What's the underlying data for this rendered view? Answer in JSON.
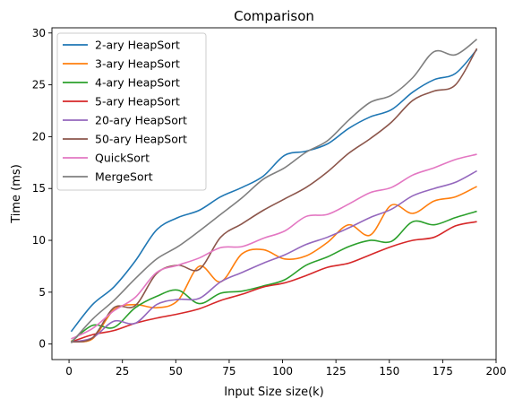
{
  "chart_data": {
    "type": "line",
    "title": "Comparison",
    "xlabel": "Input Size size(k)",
    "ylabel": "Time (ms)",
    "xlim": [
      -8,
      200
    ],
    "ylim": [
      -1.5,
      30.5
    ],
    "xticks": [
      0,
      25,
      50,
      75,
      100,
      125,
      150,
      175,
      200
    ],
    "yticks": [
      0,
      5,
      10,
      15,
      20,
      25,
      30
    ],
    "grid": false,
    "legend_position": "upper-left",
    "x": [
      1,
      11,
      21,
      31,
      41,
      51,
      61,
      71,
      81,
      91,
      101,
      111,
      121,
      131,
      141,
      151,
      161,
      171,
      181,
      191
    ],
    "series": [
      {
        "name": "2-ary HeapSort",
        "color": "#1f77b4",
        "values": [
          1.2,
          3.8,
          5.5,
          8.0,
          11.0,
          12.2,
          12.9,
          14.2,
          15.1,
          16.2,
          18.2,
          18.6,
          19.3,
          20.8,
          21.9,
          22.6,
          24.3,
          25.5,
          26.1,
          28.4
        ]
      },
      {
        "name": "3-ary HeapSort",
        "color": "#ff7f0e",
        "values": [
          0.3,
          0.5,
          3.3,
          3.8,
          3.5,
          4.2,
          7.5,
          6.0,
          8.7,
          9.1,
          8.2,
          8.5,
          9.8,
          11.5,
          10.5,
          13.4,
          12.6,
          13.8,
          14.2,
          15.2
        ]
      },
      {
        "name": "4-ary HeapSort",
        "color": "#2ca02c",
        "values": [
          0.2,
          1.8,
          1.6,
          3.5,
          4.6,
          5.2,
          3.9,
          4.9,
          5.1,
          5.6,
          6.2,
          7.6,
          8.4,
          9.4,
          10.0,
          9.9,
          11.8,
          11.5,
          12.2,
          12.8
        ]
      },
      {
        "name": "5-ary HeapSort",
        "color": "#d62728",
        "values": [
          0.2,
          0.9,
          1.3,
          2.0,
          2.5,
          2.9,
          3.4,
          4.2,
          4.8,
          5.5,
          5.9,
          6.6,
          7.4,
          7.8,
          8.6,
          9.4,
          10.0,
          10.3,
          11.4,
          11.8
        ]
      },
      {
        "name": "20-ary HeapSort",
        "color": "#9467bd",
        "values": [
          0.2,
          0.6,
          2.2,
          2.0,
          3.8,
          4.3,
          4.4,
          6.0,
          6.9,
          7.8,
          8.6,
          9.6,
          10.3,
          11.2,
          12.2,
          13.0,
          14.3,
          15.0,
          15.6,
          16.7
        ]
      },
      {
        "name": "50-ary HeapSort",
        "color": "#8c564b",
        "values": [
          0.2,
          0.6,
          3.5,
          3.7,
          6.8,
          7.6,
          7.2,
          10.3,
          11.6,
          12.9,
          14.0,
          15.1,
          16.6,
          18.4,
          19.8,
          21.4,
          23.5,
          24.4,
          25.0,
          28.5
        ]
      },
      {
        "name": "QuickSort",
        "color": "#e377c2",
        "values": [
          0.5,
          1.5,
          3.2,
          4.5,
          6.9,
          7.6,
          8.3,
          9.3,
          9.4,
          10.2,
          10.9,
          12.3,
          12.5,
          13.5,
          14.6,
          15.1,
          16.3,
          17.0,
          17.8,
          18.3
        ]
      },
      {
        "name": "MergeSort",
        "color": "#7f7f7f",
        "values": [
          0.1,
          2.4,
          4.2,
          6.3,
          8.2,
          9.4,
          10.9,
          12.5,
          14.1,
          15.9,
          17.0,
          18.5,
          19.6,
          21.6,
          23.3,
          24.0,
          25.7,
          28.2,
          27.9,
          29.4
        ]
      }
    ]
  }
}
